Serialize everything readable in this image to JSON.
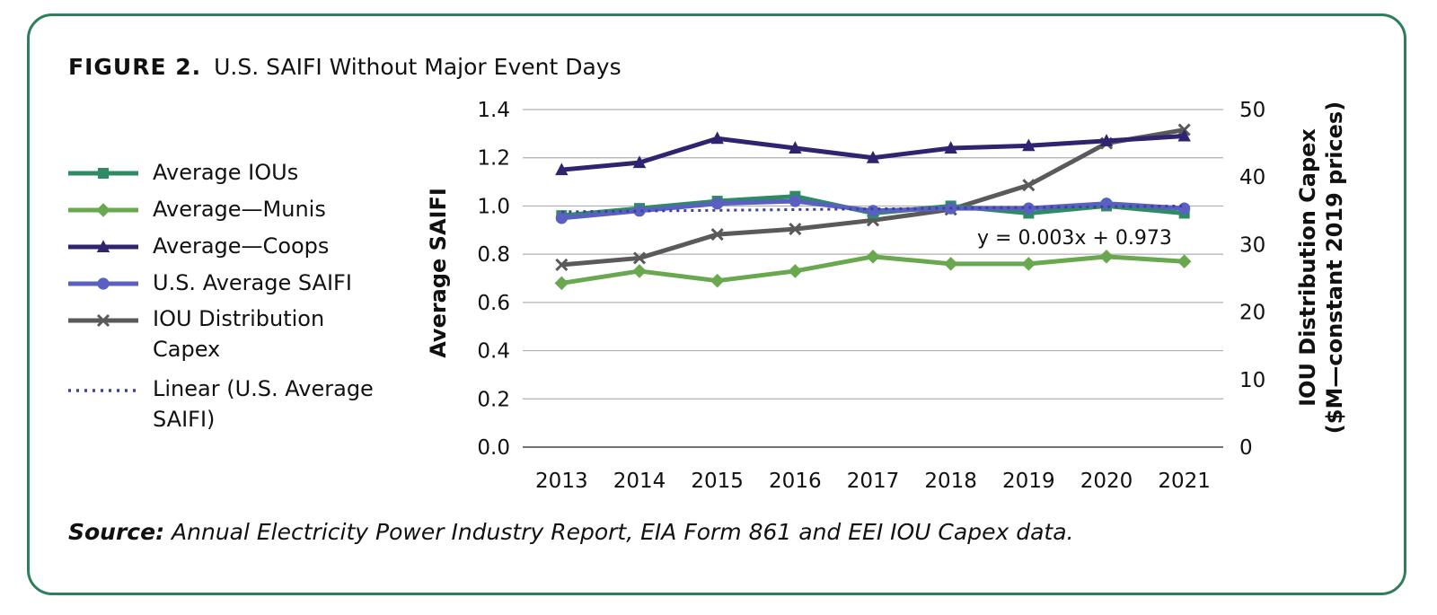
{
  "figure": {
    "label": "FIGURE 2.",
    "title": "U.S. SAIFI Without Major Event Days",
    "source_label": "Source:",
    "source_text": " Annual Electricity Power Industry Report, EIA Form 861 and EEI IOU Capex data."
  },
  "colors": {
    "frame": "#2e7d5b",
    "ious": "#2e8b63",
    "munis": "#6aa84f",
    "coops": "#2e2470",
    "us_avg": "#5a5fc2",
    "capex": "#5a5a5a",
    "linear": "#3f3fa5"
  },
  "chart_data": {
    "type": "line",
    "x": [
      "2013",
      "2014",
      "2015",
      "2016",
      "2017",
      "2018",
      "2019",
      "2020",
      "2021"
    ],
    "ylabel": "Average SAIFI",
    "y2label_line1": "IOU Distribution Capex",
    "y2label_line2": "($M—constant 2019 prices)",
    "ylim": [
      0,
      1.4
    ],
    "y2lim": [
      0,
      50
    ],
    "yticks": [
      "0.0",
      "0.2",
      "0.4",
      "0.6",
      "0.8",
      "1.0",
      "1.2",
      "1.4"
    ],
    "y2ticks": [
      "0",
      "10",
      "20",
      "30",
      "40",
      "50"
    ],
    "grid": true,
    "legend_position": "left",
    "annotation": "y = 0.003x + 0.973",
    "series": [
      {
        "name": "Average IOUs",
        "axis": "left",
        "marker": "square",
        "color_key": "ious",
        "values": [
          0.96,
          0.99,
          1.02,
          1.04,
          0.97,
          1.0,
          0.97,
          1.0,
          0.97
        ]
      },
      {
        "name": "Average—Munis",
        "axis": "left",
        "marker": "diamond",
        "color_key": "munis",
        "values": [
          0.68,
          0.73,
          0.69,
          0.73,
          0.79,
          0.76,
          0.76,
          0.79,
          0.77
        ]
      },
      {
        "name": "Average—Coops",
        "axis": "left",
        "marker": "triangle",
        "color_key": "coops",
        "values": [
          1.15,
          1.18,
          1.28,
          1.24,
          1.2,
          1.24,
          1.25,
          1.27,
          1.29
        ]
      },
      {
        "name": "U.S. Average SAIFI",
        "axis": "left",
        "marker": "circle",
        "color_key": "us_avg",
        "values": [
          0.95,
          0.98,
          1.01,
          1.02,
          0.98,
          0.99,
          0.99,
          1.01,
          0.99
        ]
      },
      {
        "name": "IOU Distribution\nCapex",
        "axis": "right",
        "marker": "x",
        "color_key": "capex",
        "values": [
          27,
          28,
          31.5,
          32.3,
          33.6,
          35.2,
          38.8,
          45,
          47
        ]
      },
      {
        "name": "Linear (U.S. Average\nSAIFI)",
        "axis": "left",
        "marker": "none",
        "dashed": true,
        "color_key": "linear",
        "values": [
          0.976,
          0.979,
          0.982,
          0.985,
          0.988,
          0.991,
          0.994,
          0.997,
          1.0
        ]
      }
    ]
  }
}
